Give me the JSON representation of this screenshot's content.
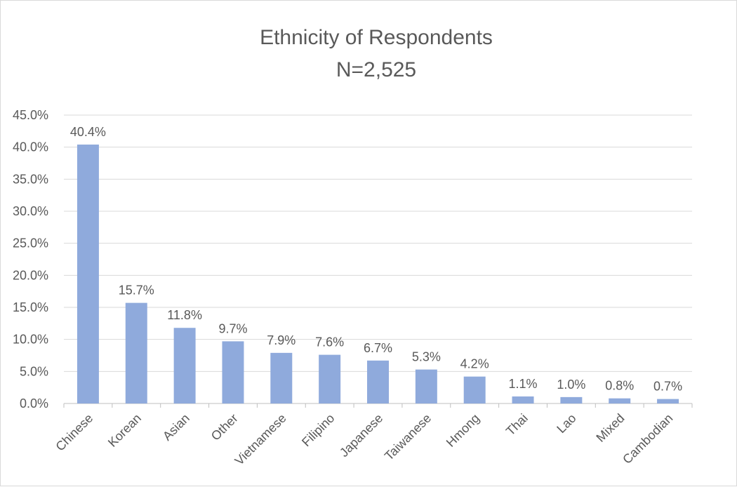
{
  "chart_data": {
    "type": "bar",
    "title": "Ethnicity of Respondents",
    "subtitle": "N=2,525",
    "categories": [
      "Chinese",
      "Korean",
      "Asian",
      "Other",
      "Vietnamese",
      "Filipino",
      "Japanese",
      "Taiwanese",
      "Hmong",
      "Thai",
      "Lao",
      "Mixed",
      "Cambodian"
    ],
    "values": [
      40.4,
      15.7,
      11.8,
      9.7,
      7.9,
      7.6,
      6.7,
      5.3,
      4.2,
      1.1,
      1.0,
      0.8,
      0.7
    ],
    "data_labels": [
      "40.4%",
      "15.7%",
      "11.8%",
      "9.7%",
      "7.9%",
      "7.6%",
      "6.7%",
      "5.3%",
      "4.2%",
      "1.1%",
      "1.0%",
      "0.8%",
      "0.7%"
    ],
    "y_ticks": [
      0,
      5,
      10,
      15,
      20,
      25,
      30,
      35,
      40,
      45
    ],
    "y_tick_labels": [
      "0.0%",
      "5.0%",
      "10.0%",
      "15.0%",
      "20.0%",
      "25.0%",
      "30.0%",
      "35.0%",
      "40.0%",
      "45.0%"
    ],
    "ylim": [
      0,
      45
    ],
    "xlabel": "",
    "ylabel": "",
    "grid": true,
    "legend": "none",
    "bar_color": "#8faadc"
  }
}
